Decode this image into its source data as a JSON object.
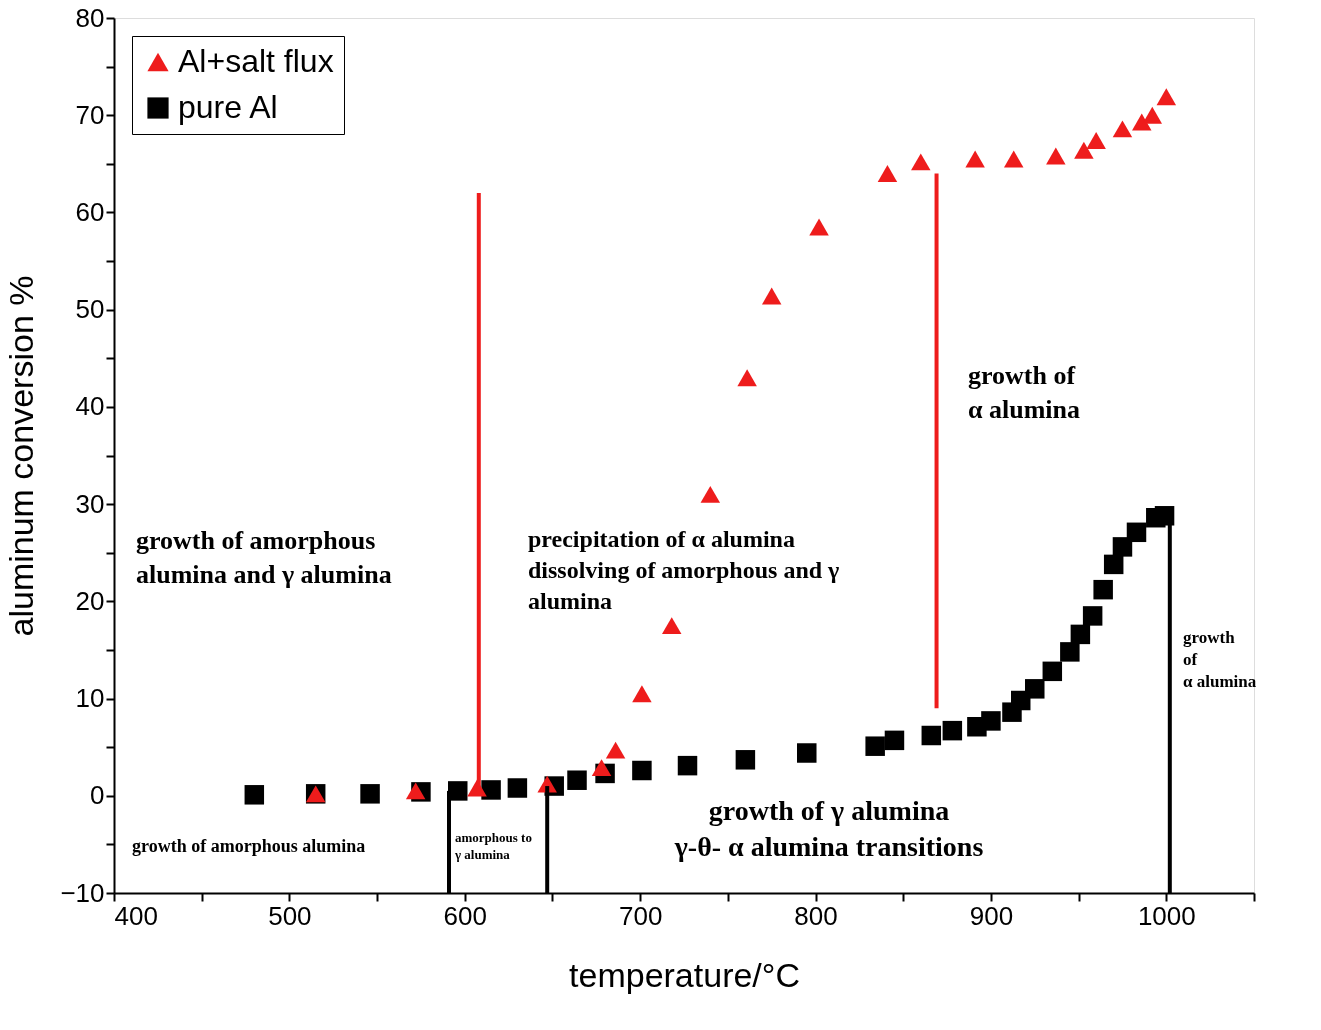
{
  "chart_data": {
    "type": "scatter",
    "xlabel": "temperature/°C",
    "ylabel": "aluminum conversion %",
    "xlim": [
      400,
      1050
    ],
    "ylim": [
      -10,
      80
    ],
    "xticks": [
      400,
      {
        "value": 450,
        "label": null
      },
      500,
      {
        "value": 550,
        "label": null
      },
      600,
      {
        "value": 650,
        "label": null
      },
      700,
      {
        "value": 750,
        "label": null
      },
      800,
      {
        "value": 850,
        "label": null
      },
      900,
      {
        "value": 950,
        "label": null
      },
      1000,
      {
        "value": 1050,
        "label": null
      }
    ],
    "yticks": [
      -10,
      {
        "value": -5,
        "label": null
      },
      0,
      {
        "value": 5,
        "label": null
      },
      10,
      {
        "value": 15,
        "label": null
      },
      20,
      {
        "value": 25,
        "label": null
      },
      30,
      {
        "value": 35,
        "label": null
      },
      40,
      {
        "value": 45,
        "label": null
      },
      50,
      {
        "value": 55,
        "label": null
      },
      60,
      {
        "value": 65,
        "label": null
      },
      70,
      {
        "value": 75,
        "label": null
      },
      80
    ],
    "grid": false,
    "legend": "top left",
    "series": [
      {
        "name": "Al+salt flux",
        "marker": "triangle",
        "color": "#ee1c1c",
        "x": [
          515,
          572,
          607,
          647,
          678,
          686,
          701,
          718,
          740,
          761,
          775,
          802,
          841,
          860,
          891,
          913,
          937,
          953,
          960,
          975,
          986,
          992,
          1000
        ],
        "values": [
          0.2,
          0.5,
          0.8,
          1.2,
          2.9,
          4.7,
          10.5,
          17.5,
          31,
          43,
          51.4,
          58.5,
          64,
          65.2,
          65.5,
          65.5,
          65.8,
          66.4,
          67.4,
          68.6,
          69.3,
          70,
          71.9
        ]
      },
      {
        "name": "pure Al",
        "marker": "square",
        "color": "#000000",
        "x": [
          480,
          515,
          546,
          575,
          596,
          615,
          630,
          651,
          664,
          680,
          701,
          727,
          760,
          795,
          834,
          845,
          866,
          878,
          892,
          900,
          912,
          917,
          925,
          935,
          945,
          951,
          958,
          964,
          970,
          975,
          983,
          994,
          999
        ],
        "values": [
          0.1,
          0.2,
          0.2,
          0.4,
          0.5,
          0.6,
          0.8,
          1.0,
          1.6,
          2.3,
          2.6,
          3.1,
          3.7,
          4.4,
          5.1,
          5.7,
          6.2,
          6.7,
          7.1,
          7.7,
          8.6,
          9.8,
          11.0,
          12.8,
          14.8,
          16.6,
          18.5,
          21.2,
          23.8,
          25.6,
          27.1,
          28.6,
          28.8
        ]
      },
      {
        "type": "line",
        "line_style": "solid",
        "color": "#ee1c1c",
        "x": [
          608,
          608
        ],
        "values": [
          0.4,
          62
        ]
      },
      {
        "type": "line",
        "line_style": "solid",
        "color": "#ee1c1c",
        "x": [
          869,
          869
        ],
        "values": [
          9,
          64
        ]
      },
      {
        "type": "line",
        "line_style": "solid",
        "color": "#000000",
        "x": [
          591,
          591
        ],
        "values": [
          -10,
          0.5
        ]
      },
      {
        "type": "line",
        "line_style": "solid",
        "color": "#000000",
        "x": [
          647,
          647
        ],
        "values": [
          -10,
          1
        ]
      },
      {
        "type": "line",
        "line_style": "solid",
        "color": "#000000",
        "x": [
          1002,
          1002
        ],
        "values": [
          -10,
          29
        ]
      }
    ],
    "annotations": [
      "growth of amorphous\nalumina  and  γ alumina",
      "precipitation  of α alumina\ndissolving of amorphous and  γ\nalumina",
      "growth of\nα  alumina",
      "growth of amorphous alumina",
      "amorphous to\nγ alumina",
      "growth of  γ alumina\nγ-θ- α alumina transitions",
      "growth\nof\n α alumina"
    ]
  }
}
